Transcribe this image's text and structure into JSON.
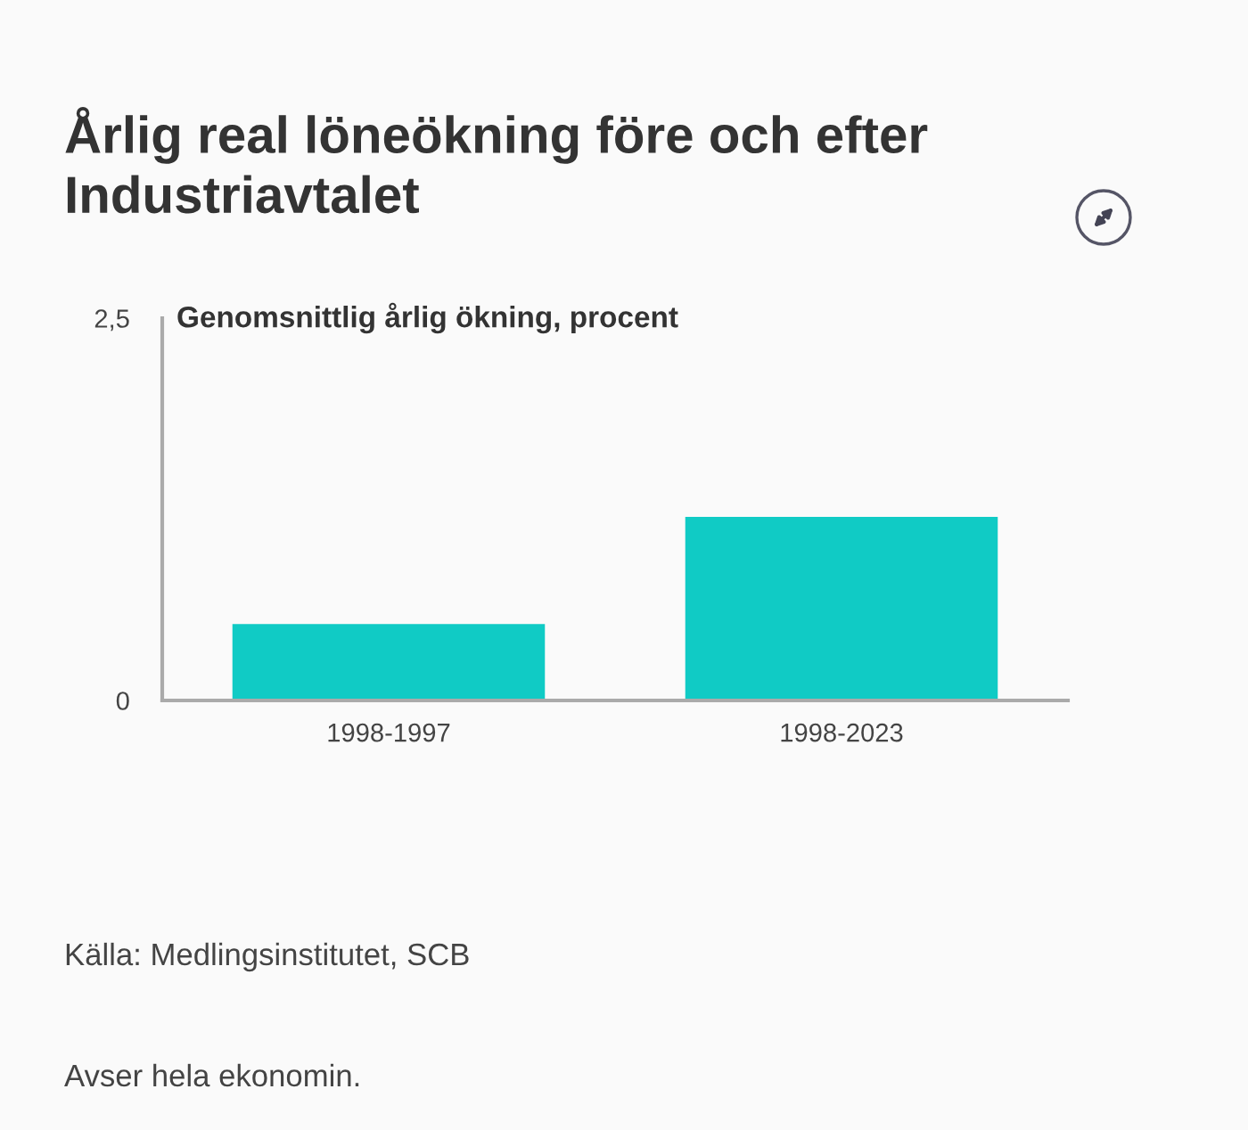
{
  "chart_data": {
    "type": "bar",
    "title": "Årlig real löneökning före och efter Industriavtalet",
    "ylabel": "Genomsnittlig årlig ökning, procent",
    "categories": [
      "1998-1997",
      "1998-2023"
    ],
    "values": [
      0.5,
      1.2
    ],
    "color": "#10cbc5",
    "ylim": [
      0,
      2.5
    ],
    "yticks": [
      0,
      {
        "value": 2.5,
        "label": "2,5"
      }
    ],
    "annotations": [
      "Källa: Medlingsinstitutet, SCB",
      "Avser hela ekonomin."
    ]
  }
}
